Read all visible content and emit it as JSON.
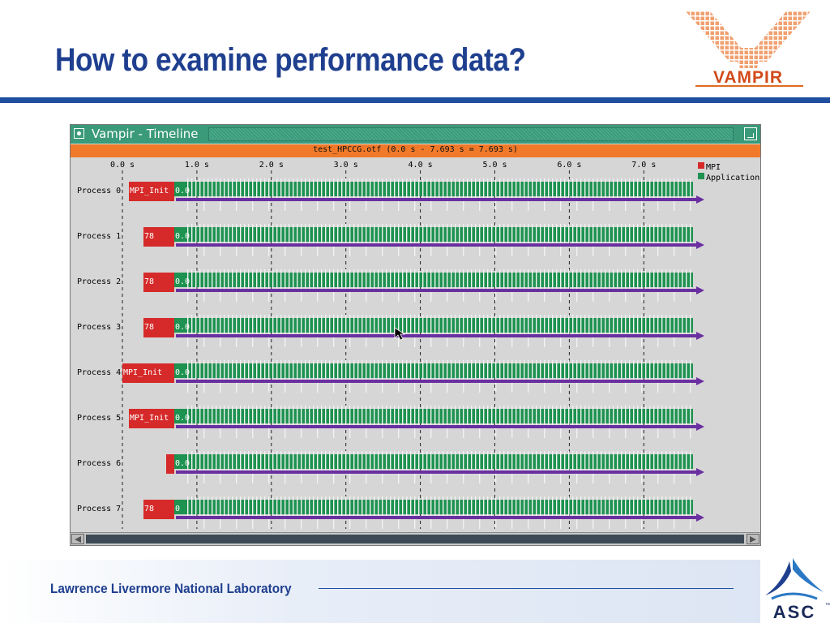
{
  "slide": {
    "title": "How to examine performance data?",
    "footer_lab": "Lawrence Livermore National Laboratory",
    "logo_vampir_text": "VAMPIR",
    "logo_asc_text": "ASC",
    "tm": "™"
  },
  "window": {
    "title": "Vampir - Timeline",
    "file_label": "test_HPCCG.otf (0.0 s - 7.693 s = 7.693 s)"
  },
  "colors": {
    "mpi": "#d62a2a",
    "application": "#1e9250",
    "message": "#6a2fa0",
    "titlebar": "#3a9a7a",
    "filebar": "#f07a2a",
    "brand_blue": "#1f3f8f"
  },
  "timeline": {
    "time_axis": [
      "0.0 s",
      "1.0 s",
      "2.0 s",
      "3.0 s",
      "4.0 s",
      "5.0 s",
      "6.0 s",
      "7.0 s"
    ],
    "legend": [
      {
        "label": "MPI",
        "color_key": "mpi"
      },
      {
        "label": "Application",
        "color_key": "application"
      }
    ],
    "processes": [
      {
        "label": "Process 0",
        "mpi_text": "MPI_Init",
        "count": "0.0"
      },
      {
        "label": "Process 1",
        "mpi_text": "78",
        "count": "0.0"
      },
      {
        "label": "Process 2",
        "mpi_text": "78",
        "count": "0.0"
      },
      {
        "label": "Process 3",
        "mpi_text": "78",
        "count": "0.0"
      },
      {
        "label": "Process 4",
        "mpi_text": "MPI_Init",
        "count": "0.0"
      },
      {
        "label": "Process 5",
        "mpi_text": "MPI_Init",
        "count": "0.0"
      },
      {
        "label": "Process 6",
        "mpi_text": "",
        "count": "0.0"
      },
      {
        "label": "Process 7",
        "mpi_text": "78",
        "count": "0"
      }
    ]
  }
}
